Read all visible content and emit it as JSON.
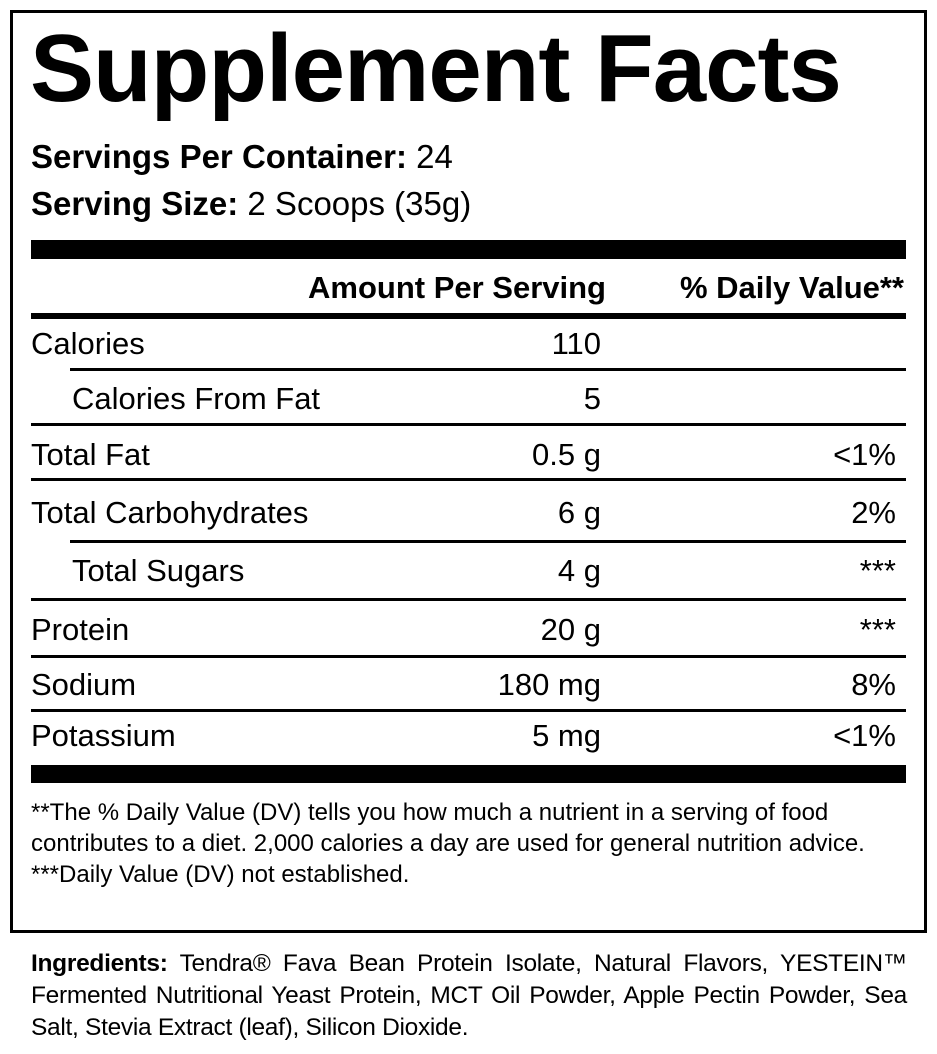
{
  "title": "Supplement Facts",
  "servings_per_container": {
    "label": "Servings Per Container:",
    "value": "24"
  },
  "serving_size": {
    "label": "Serving Size:",
    "value": "2 Scoops (35g)"
  },
  "headers": {
    "amount": "Amount Per Serving",
    "daily_value": "% Daily Value**"
  },
  "rows": [
    {
      "name": "Calories",
      "amount": "110",
      "dv": "",
      "indent": false
    },
    {
      "name": "Calories From Fat",
      "amount": "5",
      "dv": "",
      "indent": true
    },
    {
      "name": "Total Fat",
      "amount": "0.5 g",
      "dv": "<1%",
      "indent": false
    },
    {
      "name": "Total Carbohydrates",
      "amount": "6 g",
      "dv": "2%",
      "indent": false
    },
    {
      "name": "Total Sugars",
      "amount": "4 g",
      "dv": "***",
      "indent": true
    },
    {
      "name": "Protein",
      "amount": "20 g",
      "dv": "***",
      "indent": false
    },
    {
      "name": "Sodium",
      "amount": "180 mg",
      "dv": "8%",
      "indent": false
    },
    {
      "name": "Potassium",
      "amount": "5 mg",
      "dv": "<1%",
      "indent": false
    }
  ],
  "footnotes": [
    "**The % Daily Value (DV) tells you how much a nutrient in a serving of food contributes to a diet. 2,000 calories a day are used for general nutrition advice.",
    "***Daily Value (DV) not established."
  ],
  "ingredients": {
    "label": "Ingredients:",
    "text": "Tendra® Fava Bean Protein Isolate, Natural Flavors, YESTEIN™ Fermented Nutritional Yeast Protein, MCT Oil Powder, Apple Pectin Powder, Sea Salt, Stevia Extract (leaf), Silicon Dioxide."
  }
}
